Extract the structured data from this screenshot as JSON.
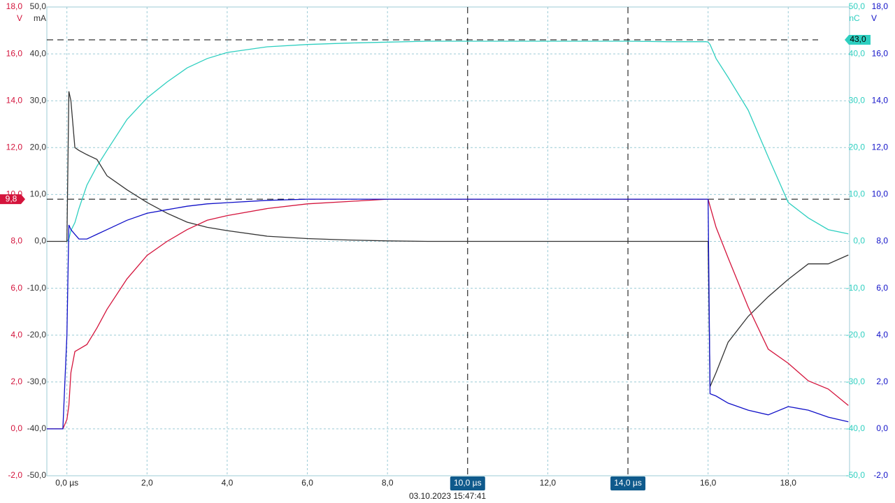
{
  "chart_data": {
    "type": "line",
    "x": [
      -0.5,
      -0.1,
      0,
      0.05,
      0.1,
      0.2,
      0.3,
      0.5,
      0.75,
      1,
      1.5,
      2,
      2.5,
      3,
      3.5,
      4,
      5,
      6,
      7,
      8,
      9,
      10,
      11,
      12,
      13,
      14,
      15,
      15.95,
      16,
      16.05,
      16.2,
      16.5,
      17,
      17.5,
      18,
      18.5,
      19,
      19.5
    ],
    "xlim": [
      -0.5,
      19.53
    ],
    "xticks": [
      {
        "value": 0,
        "label": "0,0 µs"
      },
      {
        "value": 2,
        "label": "2,0"
      },
      {
        "value": 4,
        "label": "4,0"
      },
      {
        "value": 6,
        "label": "6,0"
      },
      {
        "value": 8,
        "label": "8,0"
      },
      {
        "value": 12,
        "label": "12,0"
      },
      {
        "value": 16,
        "label": "16,0"
      },
      {
        "value": 18,
        "label": "18,0"
      }
    ],
    "grid": true,
    "axes": [
      {
        "unit": "V",
        "color": "#d4143c",
        "side": "left",
        "ylim": [
          -2,
          18
        ],
        "yticks": [
          {
            "value": -2,
            "label": "-2,0"
          },
          {
            "value": 0,
            "label": "0,0"
          },
          {
            "value": 2,
            "label": "2,0"
          },
          {
            "value": 4,
            "label": "4,0"
          },
          {
            "value": 6,
            "label": "6,0"
          },
          {
            "value": 8,
            "label": "8,0"
          },
          {
            "value": 10,
            "label": "10,0"
          },
          {
            "value": 12,
            "label": "12,0"
          },
          {
            "value": 14,
            "label": "14,0"
          },
          {
            "value": 16,
            "label": "16,0"
          },
          {
            "value": 18,
            "label": "18,0"
          }
        ]
      },
      {
        "unit": "mA",
        "color": "#333333",
        "side": "left",
        "ylim": [
          -50,
          50
        ],
        "yticks": [
          {
            "value": -50,
            "label": "-50,0"
          },
          {
            "value": -40,
            "label": "-40,0"
          },
          {
            "value": -30,
            "label": "-30,0"
          },
          {
            "value": -20,
            "label": "-20,0"
          },
          {
            "value": -10,
            "label": "-10,0"
          },
          {
            "value": 0,
            "label": "0,0"
          },
          {
            "value": 10,
            "label": "10,0"
          },
          {
            "value": 20,
            "label": "20,0"
          },
          {
            "value": 30,
            "label": "30,0"
          },
          {
            "value": 40,
            "label": "40,0"
          },
          {
            "value": 50,
            "label": "50,0"
          }
        ]
      },
      {
        "unit": "nC",
        "color": "#2ecfc0",
        "side": "right",
        "ylim": [
          -50,
          50
        ],
        "yticks": [
          {
            "value": -50,
            "label": "-50,0"
          },
          {
            "value": -40,
            "label": "-40,0"
          },
          {
            "value": -30,
            "label": "-30,0"
          },
          {
            "value": -20,
            "label": "-20,0"
          },
          {
            "value": -10,
            "label": "-10,0"
          },
          {
            "value": 0,
            "label": "0,0"
          },
          {
            "value": 10,
            "label": "10,0"
          },
          {
            "value": 20,
            "label": "20,0"
          },
          {
            "value": 30,
            "label": "30,0"
          },
          {
            "value": 40,
            "label": "40,0"
          },
          {
            "value": 50,
            "label": "50,0"
          }
        ]
      },
      {
        "unit": "V",
        "color": "#1010c8",
        "side": "right",
        "ylim": [
          -2,
          18
        ],
        "yticks": [
          {
            "value": -2,
            "label": "-2,0"
          },
          {
            "value": 0,
            "label": "0,0"
          },
          {
            "value": 2,
            "label": "2,0"
          },
          {
            "value": 4,
            "label": "4,0"
          },
          {
            "value": 6,
            "label": "6,0"
          },
          {
            "value": 8,
            "label": "8,0"
          },
          {
            "value": 10,
            "label": "10,0"
          },
          {
            "value": 12,
            "label": "12,0"
          },
          {
            "value": 14,
            "label": "14,0"
          },
          {
            "value": 16,
            "label": "16,0"
          },
          {
            "value": 18,
            "label": "18,0"
          }
        ]
      }
    ],
    "series": [
      {
        "color": "#2ecfc0",
        "axis": 2,
        "values": [
          null,
          null,
          0,
          0.5,
          2.3,
          4,
          7,
          12,
          16,
          19.4,
          26,
          30.6,
          34,
          37,
          39,
          40.3,
          41.5,
          42,
          42.3,
          42.5,
          42.7,
          42.7,
          42.7,
          42.7,
          42.7,
          42.7,
          42.6,
          42.6,
          42.5,
          42,
          39,
          35,
          28,
          18,
          8.3,
          5,
          2.5,
          1.6
        ]
      },
      {
        "color": "#333333",
        "axis": 1,
        "values": [
          0,
          0,
          0,
          32,
          30,
          20,
          19.4,
          18.5,
          17.5,
          14,
          11,
          8.3,
          6,
          4.1,
          3,
          2.3,
          1.1,
          0.6,
          0.3,
          0.1,
          0,
          0,
          0,
          0,
          0,
          0,
          0,
          0,
          0,
          -31,
          -28,
          -21.5,
          -16,
          -11.8,
          -8.1,
          -4.8,
          -4.8,
          -2.9
        ]
      },
      {
        "color": "#d4143c",
        "axis": 0,
        "values": [
          0,
          0,
          0.4,
          1.0,
          2.4,
          3.3,
          3.4,
          3.6,
          4.3,
          5.1,
          6.4,
          7.4,
          8.0,
          8.5,
          8.9,
          9.1,
          9.4,
          9.6,
          9.7,
          9.8,
          9.8,
          9.8,
          9.8,
          9.8,
          9.8,
          9.8,
          9.8,
          9.8,
          9.8,
          9.5,
          8.6,
          7.3,
          5.2,
          3.4,
          2.8,
          2.05,
          1.7,
          1.0
        ]
      },
      {
        "color": "#1010c8",
        "axis": 3,
        "values": [
          0,
          0,
          4,
          8.7,
          8.5,
          8.3,
          8.1,
          8.1,
          8.3,
          8.5,
          8.9,
          9.2,
          9.35,
          9.5,
          9.6,
          9.65,
          9.75,
          9.8,
          9.8,
          9.8,
          9.8,
          9.8,
          9.8,
          9.8,
          9.8,
          9.8,
          9.8,
          9.8,
          9.8,
          1.5,
          1.4,
          1.1,
          0.8,
          0.6,
          0.95,
          0.8,
          0.5,
          0.3
        ]
      }
    ],
    "x_cursors": [
      {
        "value": 10,
        "label": "10,0 µs"
      },
      {
        "value": 14,
        "label": "14,0 µs"
      }
    ],
    "y_cursors": [
      {
        "value": 43,
        "label": "43,0",
        "axis": 2,
        "color": "#2ecfc0"
      },
      {
        "value": 9.8,
        "label": "9,8",
        "axis": 0,
        "color": "#d4143c"
      }
    ],
    "timestamp": "03.10.2023 15:47:41"
  }
}
